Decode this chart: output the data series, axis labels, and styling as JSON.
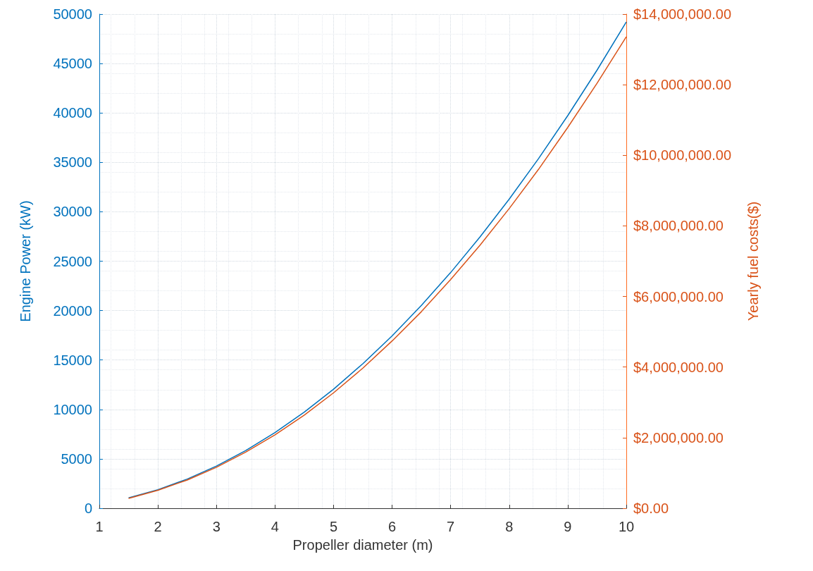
{
  "chart_data": {
    "type": "line",
    "xlabel": "Propeller diameter (m)",
    "ylabel": "Engine Power (kW)",
    "y2label": "Yearly fuel costs($)",
    "x": [
      1.5,
      2,
      2.5,
      3,
      3.5,
      4,
      4.5,
      5,
      5.5,
      6,
      6.5,
      7,
      7.5,
      8,
      8.5,
      9,
      9.5,
      10
    ],
    "series": [
      {
        "color": "#0072bd",
        "values": [
          1050,
          1880,
          2950,
          4270,
          5840,
          7660,
          9730,
          12050,
          14620,
          17440,
          20520,
          23850,
          27440,
          31280,
          35370,
          39730,
          44330,
          49200
        ]
      },
      {
        "color": "#d95319",
        "axis": "y2",
        "values": [
          280000,
          510000,
          800000,
          1160000,
          1590000,
          2080000,
          2640000,
          3270000,
          3970000,
          4740000,
          5570000,
          6480000,
          7450000,
          8490000,
          9600000,
          10790000,
          12040000,
          13360000
        ]
      }
    ],
    "xlim": [
      1,
      10
    ],
    "xticks": [
      1,
      2,
      3,
      4,
      5,
      6,
      7,
      8,
      9,
      10
    ],
    "ylim": [
      0,
      50000
    ],
    "yticks": [
      0,
      5000,
      10000,
      15000,
      20000,
      25000,
      30000,
      35000,
      40000,
      45000,
      50000
    ],
    "y2lim": [
      0,
      14000000
    ],
    "y2ticks": [
      {
        "value": 0,
        "label": "$0.00"
      },
      {
        "value": 2000000,
        "label": "$2,000,000.00"
      },
      {
        "value": 4000000,
        "label": "$4,000,000.00"
      },
      {
        "value": 6000000,
        "label": "$6,000,000.00"
      },
      {
        "value": 8000000,
        "label": "$8,000,000.00"
      },
      {
        "value": 10000000,
        "label": "$10,000,000.00"
      },
      {
        "value": 12000000,
        "label": "$12,000,000.00"
      },
      {
        "value": 14000000,
        "label": "$14,000,000.00"
      }
    ],
    "grid": true,
    "line_style": "solid"
  }
}
